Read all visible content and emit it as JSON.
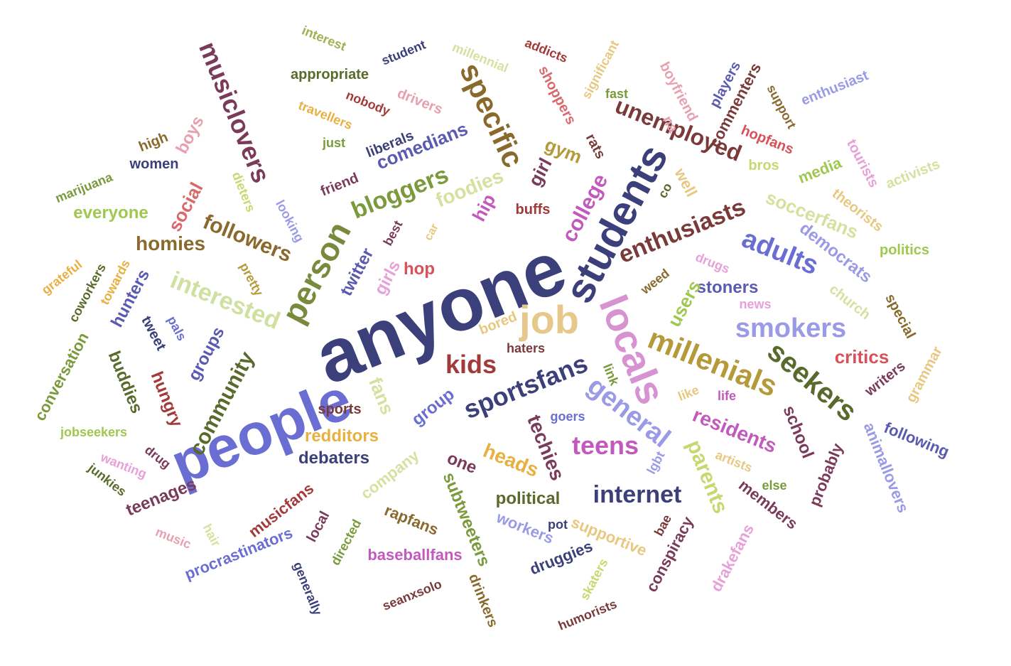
{
  "words": [
    {
      "text": "anyone",
      "color": "#3b3f7a"
    },
    {
      "text": "people",
      "color": "#6a6ed2"
    },
    {
      "text": "students",
      "color": "#3b3f7a"
    },
    {
      "text": "locals",
      "color": "#d792d2"
    },
    {
      "text": "person",
      "color": "#7a8a3c"
    },
    {
      "text": "job",
      "color": "#e6c98a"
    },
    {
      "text": "specific",
      "color": "#8a6a2c"
    },
    {
      "text": "millenials",
      "color": "#b59a3a"
    },
    {
      "text": "seekers",
      "color": "#5a6a2c"
    },
    {
      "text": "adults",
      "color": "#6a6ed2"
    },
    {
      "text": "general",
      "color": "#9a9ae6"
    },
    {
      "text": "musiclovers",
      "color": "#7a3a5a"
    },
    {
      "text": "bloggers",
      "color": "#7a9a3c"
    },
    {
      "text": "unemployed",
      "color": "#7a3a3a"
    },
    {
      "text": "enthusiasts",
      "color": "#7a3a3a"
    },
    {
      "text": "sportsfans",
      "color": "#3b3f7a"
    },
    {
      "text": "smokers",
      "color": "#9a9ae6"
    },
    {
      "text": "teens",
      "color": "#c25abd"
    },
    {
      "text": "internet",
      "color": "#3b3f7a"
    },
    {
      "text": "kids",
      "color": "#a33a3a"
    },
    {
      "text": "interested",
      "color": "#cfe0a0"
    },
    {
      "text": "followers",
      "color": "#8a6a2c"
    },
    {
      "text": "community",
      "color": "#5a6a2c"
    },
    {
      "text": "homies",
      "color": "#8a6a2c"
    },
    {
      "text": "college",
      "color": "#c25abd"
    },
    {
      "text": "parents",
      "color": "#c8d870"
    },
    {
      "text": "residents",
      "color": "#c25abd"
    },
    {
      "text": "techies",
      "color": "#7a3a5a"
    },
    {
      "text": "foodies",
      "color": "#d8e0a0"
    },
    {
      "text": "comedians",
      "color": "#5a5ab0"
    },
    {
      "text": "democrats",
      "color": "#9a9ae6"
    },
    {
      "text": "soccerfans",
      "color": "#d8e0a0"
    },
    {
      "text": "everyone",
      "color": "#a0c850"
    },
    {
      "text": "social",
      "color": "#d8686a"
    },
    {
      "text": "boys",
      "color": "#e8a0b0"
    },
    {
      "text": "twitter",
      "color": "#5a5ab0"
    },
    {
      "text": "hip",
      "color": "#c25abd"
    },
    {
      "text": "hop",
      "color": "#d8505a"
    },
    {
      "text": "girls",
      "color": "#e8a0d8"
    },
    {
      "text": "fans",
      "color": "#d8e0a0"
    },
    {
      "text": "redditors",
      "color": "#e8b040"
    },
    {
      "text": "debaters",
      "color": "#3b3f7a"
    },
    {
      "text": "heads",
      "color": "#e8b040"
    },
    {
      "text": "political",
      "color": "#5a6a2c"
    },
    {
      "text": "school",
      "color": "#7a3a5a"
    },
    {
      "text": "critics",
      "color": "#d8505a"
    },
    {
      "text": "stoners",
      "color": "#5a5ab0"
    },
    {
      "text": "users",
      "color": "#a0c850"
    },
    {
      "text": "subtweeters",
      "color": "#7a9a3c"
    },
    {
      "text": "teenages",
      "color": "#7a3a5a"
    },
    {
      "text": "buddies",
      "color": "#5a6a2c"
    },
    {
      "text": "hunters",
      "color": "#5a5ab0"
    },
    {
      "text": "groups",
      "color": "#5a5ab0"
    },
    {
      "text": "hungry",
      "color": "#a33a3a"
    },
    {
      "text": "girl",
      "color": "#7a3a5a"
    },
    {
      "text": "gym",
      "color": "#b59a3a"
    },
    {
      "text": "company",
      "color": "#d8e0a0"
    },
    {
      "text": "group",
      "color": "#6a6ed2"
    },
    {
      "text": "one",
      "color": "#7a3a5a"
    },
    {
      "text": "conversation",
      "color": "#7a9a3c"
    },
    {
      "text": "procrastinators",
      "color": "#6a6ed2"
    },
    {
      "text": "baseballfans",
      "color": "#c25abd"
    },
    {
      "text": "musicfans",
      "color": "#a33a3a"
    },
    {
      "text": "rapfans",
      "color": "#8a6a2c"
    },
    {
      "text": "supportive",
      "color": "#e8c880"
    },
    {
      "text": "druggies",
      "color": "#3b3f7a"
    },
    {
      "text": "workers",
      "color": "#9a9ae6"
    },
    {
      "text": "conspiracy",
      "color": "#7a3a5a"
    },
    {
      "text": "drakefans",
      "color": "#e8a0d8"
    },
    {
      "text": "members",
      "color": "#7a3a5a"
    },
    {
      "text": "probably",
      "color": "#7a3a5a"
    },
    {
      "text": "animallovers",
      "color": "#9a9ae6"
    },
    {
      "text": "following",
      "color": "#5a5ab0"
    },
    {
      "text": "writers",
      "color": "#7a3a5a"
    },
    {
      "text": "grammar",
      "color": "#e8c880"
    },
    {
      "text": "special",
      "color": "#8a6a2c"
    },
    {
      "text": "church",
      "color": "#d8e0a0"
    },
    {
      "text": "politics",
      "color": "#a0c850"
    },
    {
      "text": "theorists",
      "color": "#e8c880"
    },
    {
      "text": "activists",
      "color": "#d8e0a0"
    },
    {
      "text": "tourists",
      "color": "#e8a0d8"
    },
    {
      "text": "media",
      "color": "#a0c850"
    },
    {
      "text": "bros",
      "color": "#c8d870"
    },
    {
      "text": "hopfans",
      "color": "#d8505a"
    },
    {
      "text": "enthusiast",
      "color": "#9a9ae6"
    },
    {
      "text": "support",
      "color": "#8a6a2c"
    },
    {
      "text": "commenters",
      "color": "#7a3a3a"
    },
    {
      "text": "players",
      "color": "#5a5ab0"
    },
    {
      "text": "boyfriend",
      "color": "#e8a0b0"
    },
    {
      "text": "na",
      "color": "#e8a0b0"
    },
    {
      "text": "well",
      "color": "#e8c880"
    },
    {
      "text": "co",
      "color": "#5a6a2c"
    },
    {
      "text": "rats",
      "color": "#7a3a3a"
    },
    {
      "text": "fast",
      "color": "#7a9a3c"
    },
    {
      "text": "significant",
      "color": "#e8c880"
    },
    {
      "text": "shoppers",
      "color": "#d8686a"
    },
    {
      "text": "addicts",
      "color": "#a33a3a"
    },
    {
      "text": "millennial",
      "color": "#d8e0a0"
    },
    {
      "text": "drivers",
      "color": "#e8a0b0"
    },
    {
      "text": "nobody",
      "color": "#a33a3a"
    },
    {
      "text": "student",
      "color": "#3b3f7a"
    },
    {
      "text": "interest",
      "color": "#a0b050"
    },
    {
      "text": "appropriate",
      "color": "#5a6a2c"
    },
    {
      "text": "travellers",
      "color": "#e8b040"
    },
    {
      "text": "just",
      "color": "#7a9a3c"
    },
    {
      "text": "liberals",
      "color": "#3b3f7a"
    },
    {
      "text": "friend",
      "color": "#7a3a5a"
    },
    {
      "text": "high",
      "color": "#8a6a2c"
    },
    {
      "text": "women",
      "color": "#3b3f7a"
    },
    {
      "text": "marijuana",
      "color": "#7a9a3c"
    },
    {
      "text": "dieters",
      "color": "#c8d870"
    },
    {
      "text": "looking",
      "color": "#9a9ae6"
    },
    {
      "text": "best",
      "color": "#7a3a5a"
    },
    {
      "text": "car",
      "color": "#e8c880"
    },
    {
      "text": "buffs",
      "color": "#a33a3a"
    },
    {
      "text": "pretty",
      "color": "#b59a3a"
    },
    {
      "text": "grateful",
      "color": "#e8b040"
    },
    {
      "text": "coworkers",
      "color": "#5a6a2c"
    },
    {
      "text": "towards",
      "color": "#e8b040"
    },
    {
      "text": "tweet",
      "color": "#3b3f7a"
    },
    {
      "text": "pals",
      "color": "#6a6ed2"
    },
    {
      "text": "bored",
      "color": "#e8c880"
    },
    {
      "text": "haters",
      "color": "#7a3a3a"
    },
    {
      "text": "link",
      "color": "#7a9a3c"
    },
    {
      "text": "like",
      "color": "#e8c880"
    },
    {
      "text": "life",
      "color": "#c25abd"
    },
    {
      "text": "goers",
      "color": "#6a6ed2"
    },
    {
      "text": "lgbt",
      "color": "#9a9ae6"
    },
    {
      "text": "artists",
      "color": "#e8c880"
    },
    {
      "text": "else",
      "color": "#7a9a3c"
    },
    {
      "text": "pot",
      "color": "#3b3f7a"
    },
    {
      "text": "bae",
      "color": "#7a3a3a"
    },
    {
      "text": "drugs",
      "color": "#e8a0d8"
    },
    {
      "text": "weed",
      "color": "#8a6a2c"
    },
    {
      "text": "news",
      "color": "#e8a0d8"
    },
    {
      "text": "sports",
      "color": "#7a3a3a"
    },
    {
      "text": "jobseekers",
      "color": "#a0c850"
    },
    {
      "text": "wanting",
      "color": "#e8a0d8"
    },
    {
      "text": "drug",
      "color": "#7a3a5a"
    },
    {
      "text": "junkies",
      "color": "#5a6a2c"
    },
    {
      "text": "music",
      "color": "#e8a0b0"
    },
    {
      "text": "hair",
      "color": "#d8e0a0"
    },
    {
      "text": "local",
      "color": "#7a3a5a"
    },
    {
      "text": "directed",
      "color": "#7a9a3c"
    },
    {
      "text": "generally",
      "color": "#3b3f7a"
    },
    {
      "text": "seanxsolo",
      "color": "#7a3a3a"
    },
    {
      "text": "drinkers",
      "color": "#8a6a2c"
    },
    {
      "text": "skaters",
      "color": "#c8d870"
    },
    {
      "text": "humorists",
      "color": "#7a3a3a"
    }
  ]
}
